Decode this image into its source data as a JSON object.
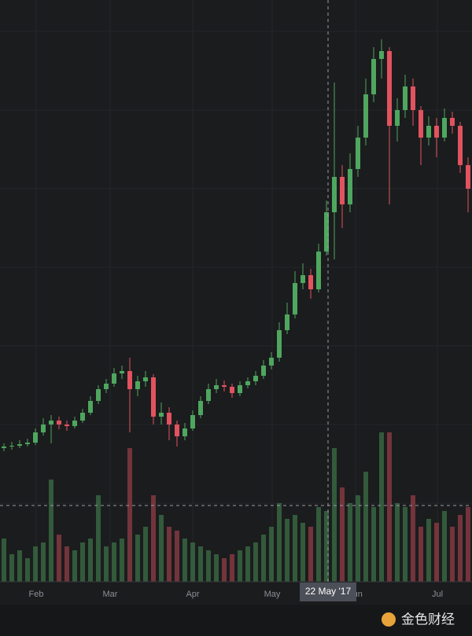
{
  "chart_data": {
    "type": "candlestick",
    "xlim": [
      0,
      60
    ],
    "xticks": [
      {
        "value": 4.6,
        "label": "Feb"
      },
      {
        "value": 14.0,
        "label": "Mar"
      },
      {
        "value": 24.5,
        "label": "Apr"
      },
      {
        "value": 34.6,
        "label": "May"
      },
      {
        "value": 45.2,
        "label": "Jun"
      },
      {
        "value": 55.6,
        "label": "Jul"
      }
    ],
    "ylim": [
      0,
      740
    ],
    "yticks": [
      100,
      200,
      300,
      400,
      500,
      600,
      700
    ],
    "y2lim": [
      0,
      740
    ],
    "grid": true,
    "up_color": "#4fa65f",
    "down_color": "#e0535f",
    "open": [
      170,
      172,
      173,
      175,
      177,
      190,
      200,
      205,
      200,
      198,
      205,
      215,
      230,
      245,
      252,
      265,
      268,
      245,
      255,
      260,
      210,
      215,
      200,
      185,
      195,
      212,
      230,
      245,
      250,
      248,
      240,
      250,
      255,
      262,
      275,
      285,
      320,
      340,
      380,
      390,
      372,
      420,
      470,
      515,
      480,
      525,
      565,
      620,
      665,
      675,
      580,
      600,
      630,
      600,
      565,
      580,
      565,
      590,
      580,
      530
    ],
    "high": [
      176,
      178,
      180,
      182,
      195,
      208,
      212,
      210,
      205,
      210,
      220,
      236,
      250,
      258,
      272,
      275,
      285,
      262,
      268,
      264,
      228,
      222,
      205,
      202,
      218,
      236,
      252,
      258,
      256,
      252,
      255,
      260,
      268,
      282,
      292,
      330,
      355,
      395,
      405,
      398,
      430,
      485,
      635,
      530,
      545,
      580,
      640,
      680,
      690,
      680,
      615,
      645,
      640,
      605,
      592,
      590,
      602,
      598,
      585,
      540
    ],
    "low": [
      166,
      168,
      170,
      172,
      174,
      186,
      176,
      194,
      192,
      195,
      202,
      212,
      226,
      240,
      248,
      258,
      190,
      236,
      248,
      200,
      200,
      180,
      172,
      180,
      192,
      208,
      226,
      240,
      242,
      234,
      236,
      246,
      250,
      258,
      270,
      280,
      315,
      335,
      372,
      360,
      368,
      415,
      410,
      450,
      470,
      515,
      555,
      610,
      640,
      480,
      560,
      590,
      580,
      530,
      555,
      540,
      560,
      570,
      520,
      470
    ],
    "close": [
      172,
      173,
      175,
      177,
      190,
      200,
      205,
      200,
      198,
      205,
      215,
      230,
      245,
      252,
      265,
      268,
      245,
      255,
      260,
      210,
      215,
      200,
      185,
      195,
      212,
      230,
      245,
      250,
      248,
      240,
      250,
      255,
      262,
      275,
      285,
      320,
      340,
      380,
      390,
      372,
      420,
      470,
      515,
      480,
      525,
      565,
      620,
      665,
      675,
      580,
      600,
      630,
      600,
      565,
      580,
      565,
      590,
      580,
      530,
      500
    ],
    "volume": [
      55,
      35,
      40,
      30,
      45,
      50,
      130,
      60,
      45,
      40,
      50,
      55,
      110,
      45,
      50,
      55,
      170,
      60,
      70,
      110,
      85,
      70,
      65,
      55,
      50,
      45,
      40,
      35,
      30,
      35,
      40,
      45,
      50,
      60,
      70,
      100,
      80,
      85,
      75,
      70,
      95,
      90,
      170,
      120,
      100,
      110,
      140,
      95,
      190,
      190,
      100,
      95,
      110,
      70,
      80,
      75,
      90,
      70,
      85,
      95
    ],
    "crosshair": {
      "x": 41.7,
      "y2": 97,
      "label": "22 May '17"
    },
    "watermark": "金色财经"
  }
}
